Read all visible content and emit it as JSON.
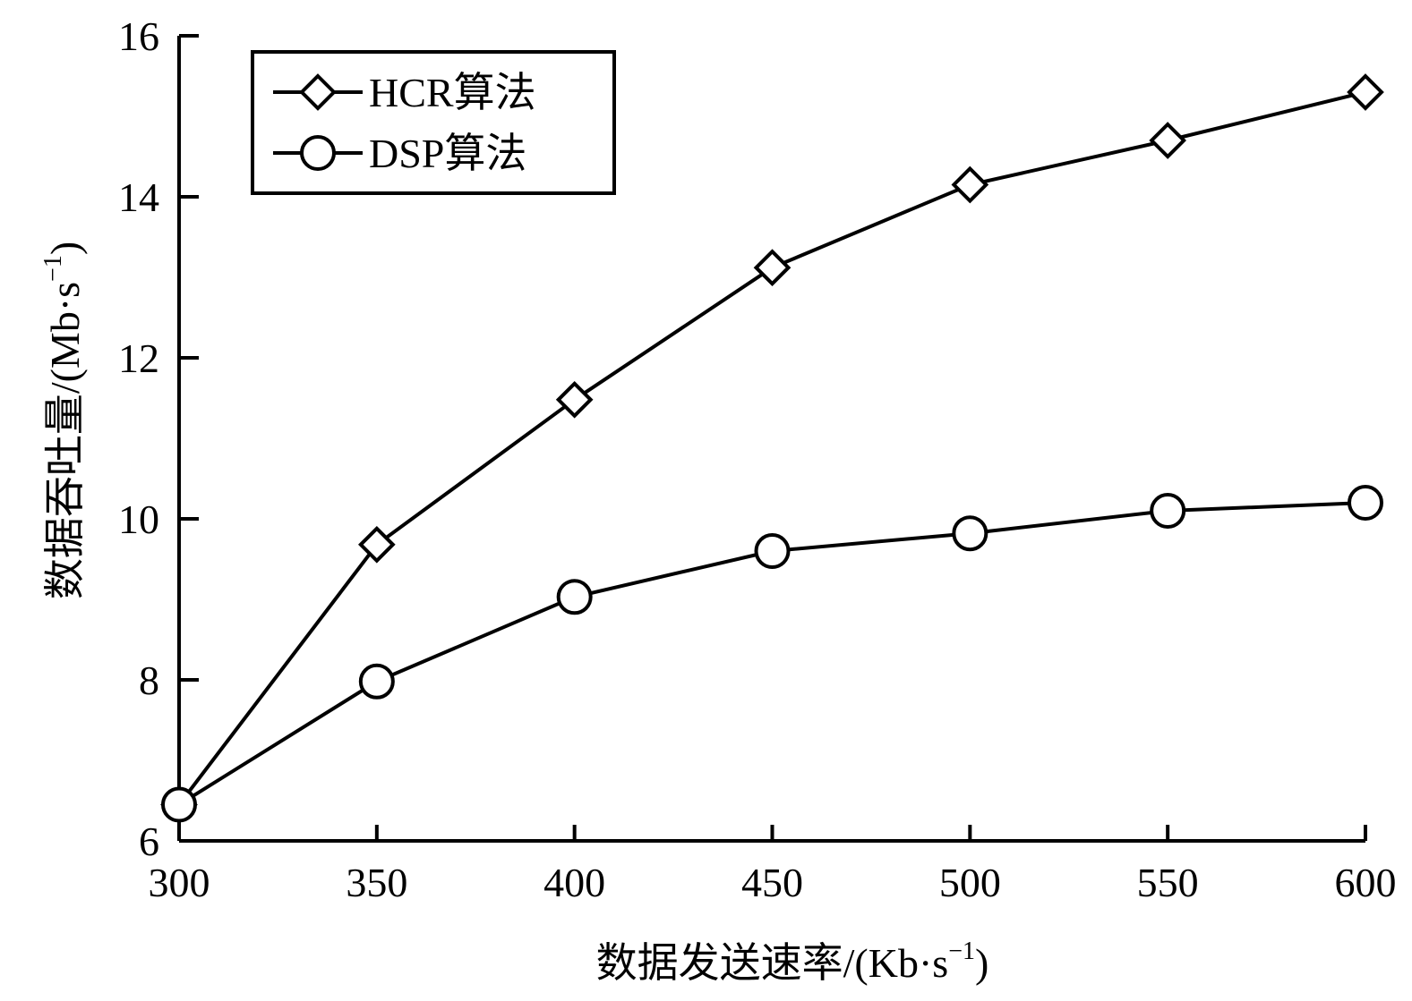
{
  "chart_data": {
    "type": "line",
    "title": "",
    "x": [
      300,
      350,
      400,
      450,
      500,
      550,
      600
    ],
    "xlim": [
      300,
      600
    ],
    "ylim": [
      6,
      16
    ],
    "xticks": [
      300,
      350,
      400,
      450,
      500,
      550,
      600
    ],
    "yticks": [
      6,
      8,
      10,
      12,
      14,
      16
    ],
    "xlabel": {
      "main": "数据发送速率/(Kb·s",
      "sup": "−1",
      "close": ")"
    },
    "ylabel": {
      "main": "数据吞吐量/(Mb·s",
      "sup": "−1",
      "close": ")"
    },
    "grid": false,
    "legend_position": "top-left",
    "series": [
      {
        "name": "HCR算法",
        "marker": "diamond",
        "color": "#000000",
        "values": [
          6.45,
          9.68,
          11.48,
          13.12,
          14.15,
          14.7,
          15.3
        ]
      },
      {
        "name": "DSP算法",
        "marker": "circle",
        "color": "#000000",
        "values": [
          6.45,
          7.98,
          9.03,
          9.6,
          9.82,
          10.1,
          10.2
        ]
      }
    ]
  }
}
